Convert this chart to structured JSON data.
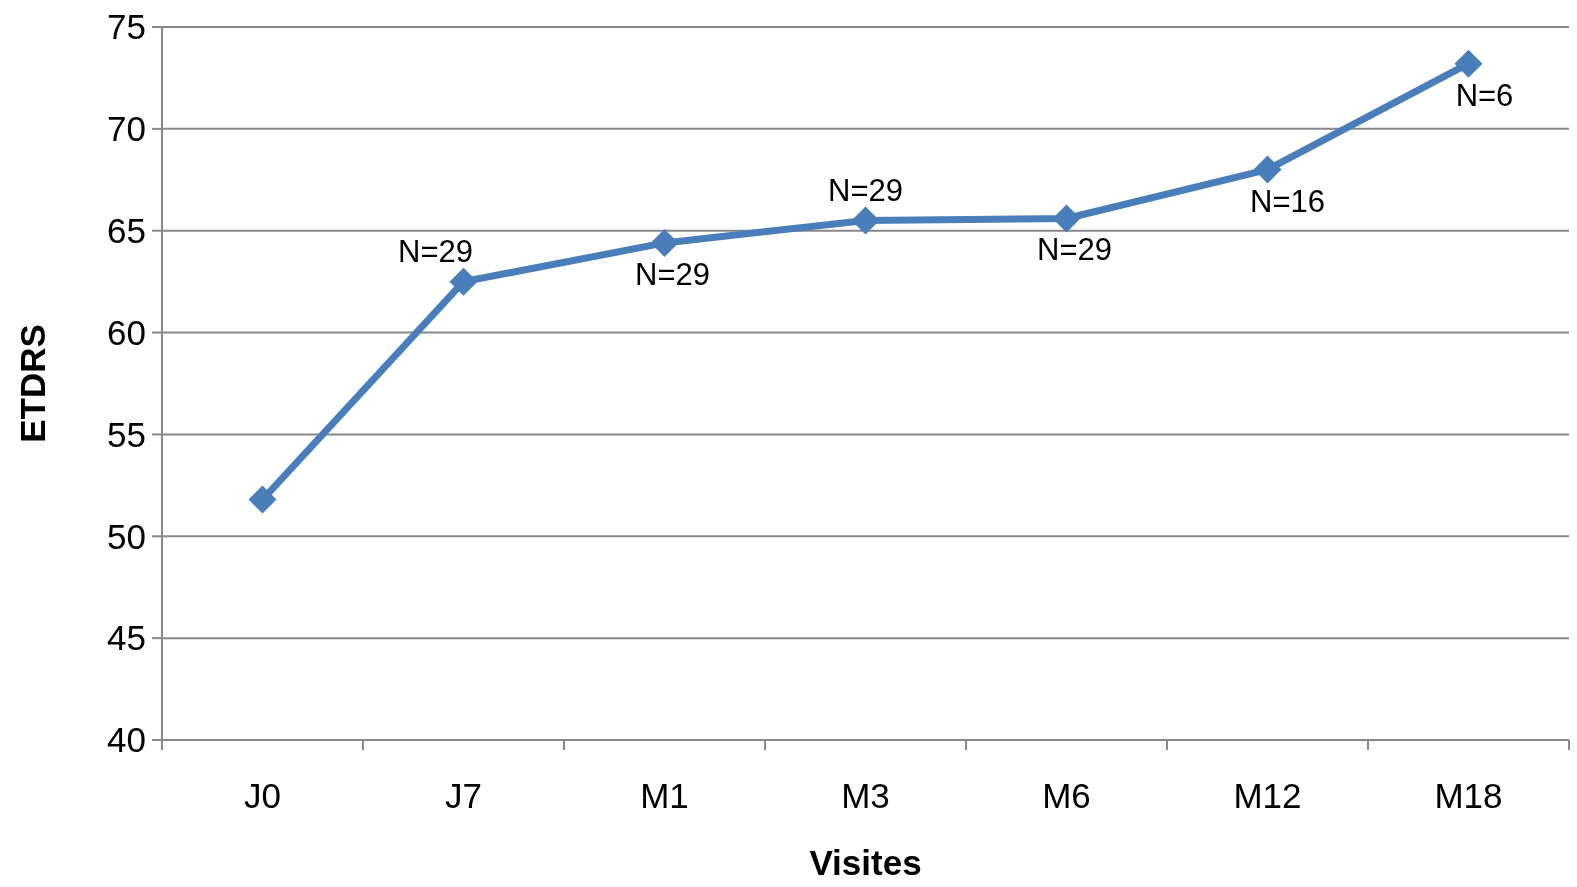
{
  "chart_data": {
    "type": "line",
    "xlabel": "Visites",
    "ylabel": "ETDRS",
    "categories": [
      "J0",
      "J7",
      "M1",
      "M3",
      "M6",
      "M12",
      "M18"
    ],
    "series": [
      {
        "color": "#4a7ebb",
        "values": [
          51.8,
          62.5,
          64.4,
          65.5,
          65.6,
          68.0,
          73.2
        ]
      }
    ],
    "ylim": [
      40,
      75
    ],
    "yticks": [
      40,
      45,
      50,
      55,
      60,
      65,
      70,
      75
    ],
    "grid": "y",
    "marker": "diamond",
    "line_style": "solid",
    "annotations": [
      {
        "text": "N=29",
        "x": "J7",
        "y": 62.5
      },
      {
        "text": "N=29",
        "x": "M1",
        "y": 64.4
      },
      {
        "text": "N=29",
        "x": "M3",
        "y": 65.5
      },
      {
        "text": "N=29",
        "x": "M6",
        "y": 65.6
      },
      {
        "text": "N=16",
        "x": "M12",
        "y": 68.0
      },
      {
        "text": "N=6",
        "x": "M18",
        "y": 73.2
      }
    ]
  }
}
